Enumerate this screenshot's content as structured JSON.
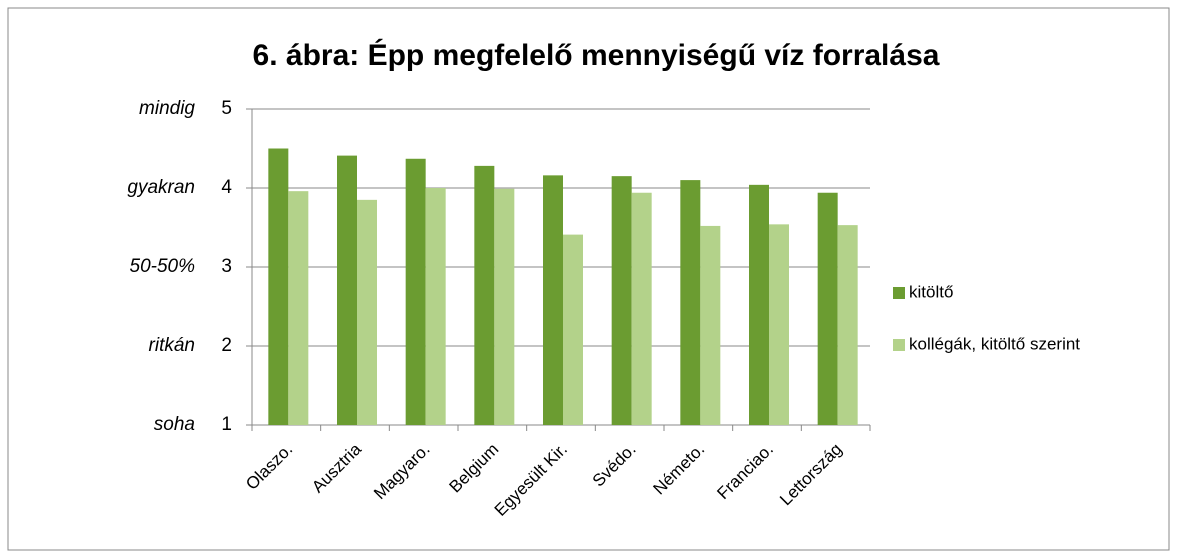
{
  "chart_data": {
    "type": "bar",
    "title": "6. ábra: Épp megfelelő mennyiségű víz forralása",
    "categories": [
      "Olaszo.",
      "Ausztria",
      "Magyaro.",
      "Belgium",
      "Egyesült Kir.",
      "Svédo.",
      "Németo.",
      "Franciao.",
      "Lettország"
    ],
    "series": [
      {
        "name": "kitöltő",
        "color": "#6b9c31",
        "values": [
          4.5,
          4.41,
          4.37,
          4.28,
          4.16,
          4.15,
          4.1,
          4.04,
          3.94
        ]
      },
      {
        "name": "kollégák, kitöltő szerint",
        "color": "#b3d28a",
        "values": [
          3.96,
          3.85,
          4.0,
          3.99,
          3.41,
          3.94,
          3.52,
          3.54,
          3.53
        ]
      }
    ],
    "ylim": [
      1,
      5
    ],
    "yticks": [
      1,
      2,
      3,
      4,
      5
    ],
    "ytick_names": [
      "soha",
      "ritkán",
      "50-50%",
      "gyakran",
      "mindig"
    ],
    "grid": true,
    "legend": "right"
  }
}
